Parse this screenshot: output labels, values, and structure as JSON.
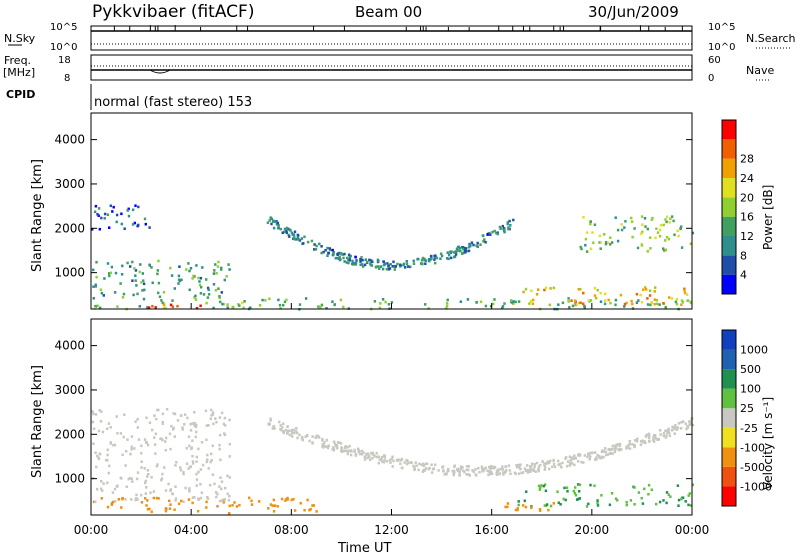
{
  "header": {
    "station": "Pykkvibaer (fitACF)",
    "beam": "Beam 00",
    "date": "30/Jun/2009"
  },
  "top_panels": {
    "nsky_label": "N.Sky",
    "nsky_ticks": [
      "10^5",
      "10^0"
    ],
    "nsearch_label": "N.Search",
    "nsearch_ticks": [
      "10^5",
      "10^0"
    ],
    "freq_label": "Freq.",
    "freq_unit": "[MHz]",
    "freq_ticks": [
      "18",
      "8"
    ],
    "nave_label": "Nave",
    "nave_ticks": [
      "60",
      "0"
    ],
    "cpid_label": "CPID",
    "cpid_text": "normal (fast stereo) 153"
  },
  "colors": {
    "power_scale": [
      "#0000ff",
      "#1f4fa8",
      "#2f8f8f",
      "#3fa060",
      "#8fd030",
      "#e0e020",
      "#f0a000",
      "#f06000",
      "#ff0000"
    ],
    "velocity_scale": [
      "#1040c0",
      "#2060b0",
      "#209050",
      "#60c040",
      "#c8c8c0",
      "#f0e020",
      "#f09010",
      "#f05010",
      "#ff0000"
    ],
    "ground_scatter": "#c8c8c0"
  },
  "chart_data": [
    {
      "type": "heatmap",
      "title": "Power",
      "ylabel": "Slant Range [km]",
      "xlabel": "Time UT",
      "xlim": [
        "00:00",
        "24:00"
      ],
      "ylim": [
        180,
        4600
      ],
      "x_ticks": [
        "00:00",
        "04:00",
        "08:00",
        "12:00",
        "16:00",
        "20:00",
        "00:00"
      ],
      "y_ticks": [
        "1000",
        "2000",
        "3000",
        "4000"
      ],
      "colorbar": {
        "label": "Power [dB]",
        "ticks": [
          "4",
          "8",
          "12",
          "16",
          "20",
          "24",
          "28"
        ],
        "range": [
          0,
          30
        ]
      },
      "features": [
        {
          "region": "near-range band",
          "time_hours": [
            0,
            24
          ],
          "range_km": [
            200,
            450
          ],
          "power_db": 12
        },
        {
          "region": "early evening echoes",
          "time_hours": [
            0,
            5.5
          ],
          "range_km": [
            450,
            1300
          ],
          "power_db": 10
        },
        {
          "region": "strong near echo",
          "time_hours": [
            1.8,
            4.5
          ],
          "range_km": [
            200,
            350
          ],
          "power_db": 28
        },
        {
          "region": "far band (morning)",
          "time_hours": [
            0,
            2.5
          ],
          "range_km": [
            2000,
            2600
          ],
          "power_db": 6
        },
        {
          "region": "descending arc",
          "time_hours": [
            7,
            17
          ],
          "range_km": [
            1200,
            2400
          ],
          "power_db": 8
        },
        {
          "region": "evening far band",
          "time_hours": [
            19.5,
            24
          ],
          "range_km": [
            1500,
            2300
          ],
          "power_db": 14
        },
        {
          "region": "evening near echoes",
          "time_hours": [
            17,
            24
          ],
          "range_km": [
            300,
            700
          ],
          "power_db": 20
        }
      ]
    },
    {
      "type": "heatmap",
      "title": "Velocity",
      "ylabel": "Slant Range [km]",
      "xlabel": "Time UT",
      "xlim": [
        "00:00",
        "24:00"
      ],
      "ylim": [
        180,
        4600
      ],
      "x_ticks": [
        "00:00",
        "04:00",
        "08:00",
        "12:00",
        "16:00",
        "20:00",
        "00:00"
      ],
      "y_ticks": [
        "1000",
        "2000",
        "3000",
        "4000"
      ],
      "colorbar": {
        "label": "Velocity [m s⁻¹]",
        "ticks": [
          "1000",
          "500",
          "100",
          "25",
          "-25",
          "-100",
          "-500",
          "-1000"
        ]
      },
      "features": [
        {
          "region": "near-range band",
          "time_hours": [
            0,
            9
          ],
          "range_km": [
            250,
            600
          ],
          "velocity": -200
        },
        {
          "region": "ground scatter arc",
          "time_hours": [
            7,
            24
          ],
          "range_km": [
            1200,
            2500
          ],
          "velocity": 0
        },
        {
          "region": "early ground scatter",
          "time_hours": [
            0,
            5.5
          ],
          "range_km": [
            500,
            2600
          ],
          "velocity": 0
        },
        {
          "region": "evening flow",
          "time_hours": [
            17,
            24
          ],
          "range_km": [
            400,
            900
          ],
          "velocity": 100
        },
        {
          "region": "evening negative echo",
          "time_hours": [
            16.5,
            18.5
          ],
          "range_km": [
            300,
            600
          ],
          "velocity": -300
        }
      ]
    }
  ]
}
